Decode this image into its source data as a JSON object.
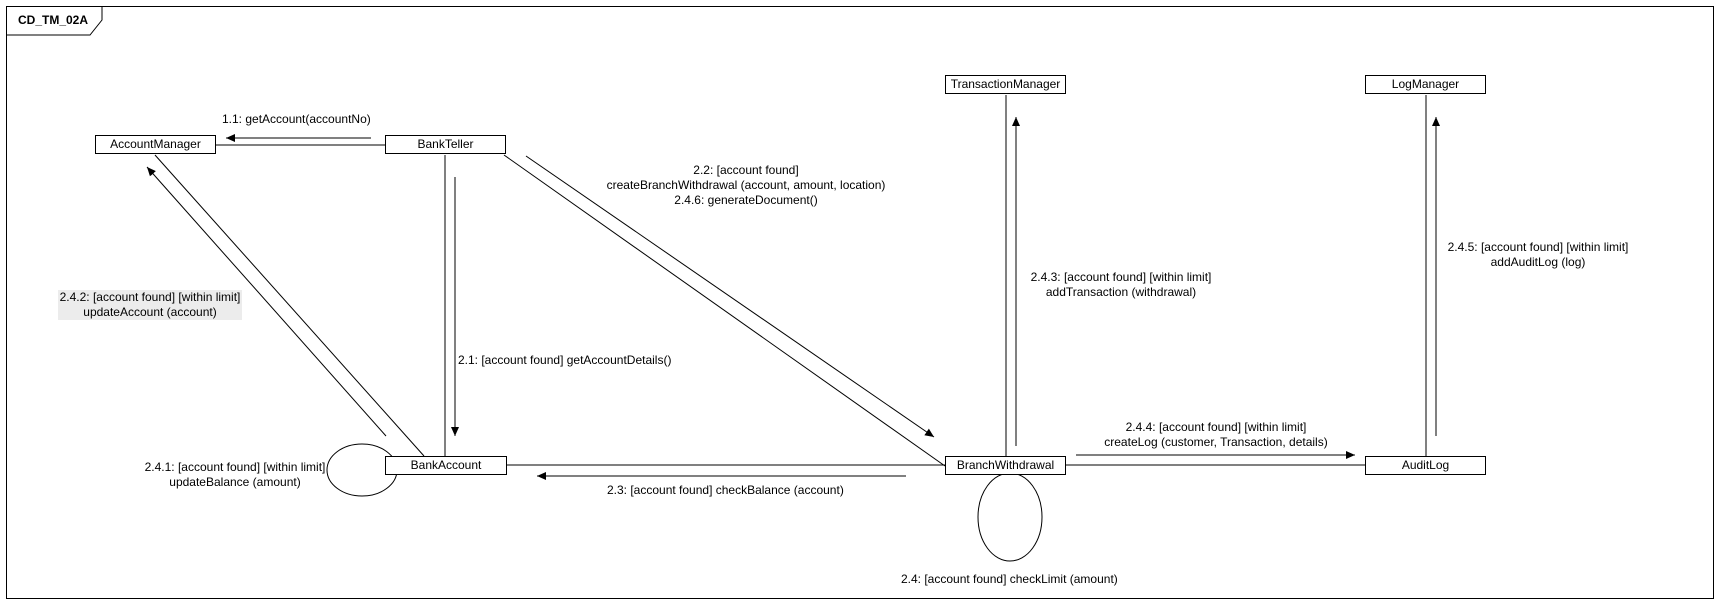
{
  "frame": {
    "title": "CD_TM_02A"
  },
  "objects": {
    "account_manager": "AccountManager",
    "bank_teller": "BankTeller",
    "transaction_manager": "TransactionManager",
    "log_manager": "LogManager",
    "bank_account": "BankAccount",
    "branch_withdrawal": "BranchWithdrawal",
    "audit_log": "AuditLog"
  },
  "messages": {
    "m1_1": "1.1: getAccount(accountNo)",
    "m2_1": "2.1: [account found] getAccountDetails()",
    "m2_2": {
      "line1": "2.2: [account found]",
      "line2": "createBranchWithdrawal (account, amount, location)",
      "line3": "2.4.6: generateDocument()"
    },
    "m2_3": "2.3: [account found] checkBalance (account)",
    "m2_4": "2.4: [account found] checkLimit (amount)",
    "m2_4_1": {
      "line1": "2.4.1: [account found] [within limit]",
      "line2": "updateBalance (amount)"
    },
    "m2_4_2": {
      "line1": "2.4.2: [account found] [within limit]",
      "line2": "updateAccount (account)"
    },
    "m2_4_3": {
      "line1": "2.4.3: [account found] [within limit]",
      "line2": "addTransaction (withdrawal)"
    },
    "m2_4_4": {
      "line1": "2.4.4: [account found] [within limit]",
      "line2": "createLog (customer, Transaction, details)"
    },
    "m2_4_5": {
      "line1": "2.4.5: [account found] [within limit]",
      "line2": "addAuditLog (log)"
    }
  }
}
